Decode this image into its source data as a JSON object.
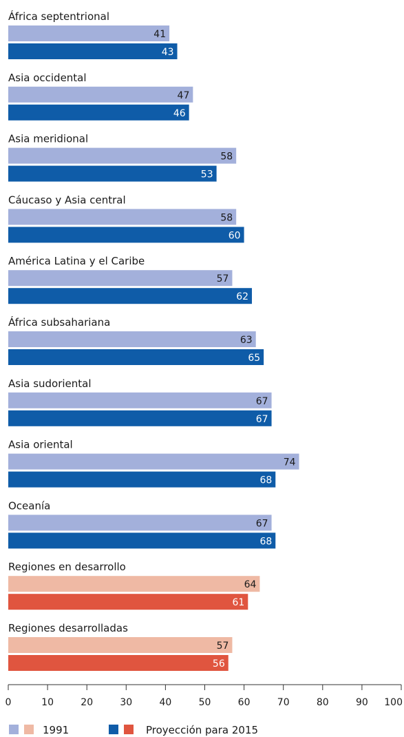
{
  "chart_data": {
    "type": "bar",
    "orientation": "horizontal",
    "title": "",
    "xlabel": "",
    "ylabel": "",
    "xlim": [
      0,
      100
    ],
    "x_ticks": [
      0,
      10,
      20,
      30,
      40,
      50,
      60,
      70,
      80,
      90,
      100
    ],
    "grid": false,
    "legend_position": "bottom",
    "categories": [
      "África septentrional",
      "Asia occidental",
      "Asia meridional",
      "Cáucaso y Asia central",
      "América Latina y el Caribe",
      "África subsahariana",
      "Asia sudoriental",
      "Asia oriental",
      "Oceanía",
      "Regiones en desarrollo",
      "Regiones desarrolladas"
    ],
    "category_group": [
      "region",
      "region",
      "region",
      "region",
      "region",
      "region",
      "region",
      "region",
      "region",
      "aggregate",
      "aggregate"
    ],
    "series": [
      {
        "name": "1991",
        "values": [
          41,
          47,
          58,
          58,
          57,
          63,
          67,
          74,
          67,
          64,
          57
        ]
      },
      {
        "name": "Proyección para 2015",
        "values": [
          43,
          46,
          53,
          60,
          62,
          65,
          67,
          68,
          68,
          61,
          56
        ]
      }
    ],
    "colors": {
      "region": [
        "#a3b0db",
        "#0f5ca8"
      ],
      "aggregate": [
        "#efb9a4",
        "#e0553f"
      ],
      "label_dark": "#1a1a1a",
      "label_light": "#ffffff",
      "axis": "#333333"
    }
  }
}
